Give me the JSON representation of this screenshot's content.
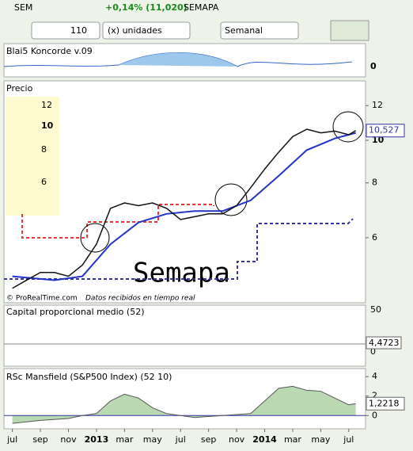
{
  "toolbar": {
    "ticker": "SEM",
    "change": "+0,14% (11,020)",
    "name": "SEMAPA",
    "quantity": "110",
    "unit": "(x) unidades",
    "period": "Semanal"
  },
  "koncorde": {
    "title": "Blai5 Koncorde v.09",
    "ytick": "0"
  },
  "price": {
    "title": "Precio",
    "log": true,
    "ylim": [
      4.3,
      13
    ],
    "yticks": [
      12,
      {
        "value": 10,
        "label": "10"
      },
      8,
      6
    ],
    "last": {
      "value": 10.527,
      "label": "10,527"
    },
    "inset_ticks": [
      "12",
      "10",
      "8",
      "6"
    ],
    "watermark": "Semapa",
    "credit": "© ProRealTime.com",
    "credit_note": "Datos recibidos en tiempo real",
    "x": [
      0,
      1,
      2,
      3,
      4,
      5,
      6,
      7,
      8,
      9,
      10,
      11,
      12,
      13,
      14,
      15,
      16,
      17,
      18,
      19,
      20,
      21,
      22,
      23,
      24,
      24.5
    ],
    "close": [
      4.6,
      4.8,
      5.0,
      5.0,
      4.9,
      5.2,
      5.8,
      7.0,
      7.2,
      7.1,
      7.2,
      7.0,
      6.6,
      6.7,
      6.8,
      6.8,
      7.1,
      7.8,
      8.6,
      9.4,
      10.2,
      10.6,
      10.4,
      10.5,
      10.3,
      10.527
    ],
    "ma_x": [
      0,
      3,
      5,
      7,
      9,
      11,
      13,
      15,
      17,
      19,
      21,
      23,
      24.5
    ],
    "ma": [
      4.9,
      4.8,
      4.9,
      5.8,
      6.5,
      6.8,
      6.9,
      6.9,
      7.3,
      8.3,
      9.5,
      10.1,
      10.4
    ]
  },
  "capital": {
    "title": "Capital proporcional medio (52)",
    "yticks": [
      "50",
      "0"
    ],
    "last": "4,4723"
  },
  "mansfield": {
    "title": "RSc Mansfield (S&P500 Index) (52 10)",
    "ylim": [
      -1.2,
      4.5
    ],
    "yticks": [
      4,
      2,
      0
    ],
    "last": {
      "value": 1.2218,
      "label": "1,2218"
    },
    "x": [
      0,
      2,
      4,
      5,
      6,
      7,
      8,
      9,
      10,
      11,
      12,
      13,
      15,
      17,
      18,
      19,
      20,
      21,
      22,
      23,
      24,
      24.5
    ],
    "values": [
      -0.8,
      -0.5,
      -0.3,
      0,
      0.2,
      1.5,
      2.2,
      1.8,
      0.8,
      0.2,
      0,
      -0.2,
      0,
      0.2,
      1.5,
      2.8,
      3.0,
      2.6,
      2.5,
      1.8,
      1.1,
      1.2218
    ]
  },
  "xaxis": {
    "xlim": [
      -0.6,
      24.8
    ],
    "ticks": [
      {
        "value": 0,
        "label": "jul"
      },
      {
        "value": 2,
        "label": "sep"
      },
      {
        "value": 4,
        "label": "nov"
      },
      {
        "value": 6,
        "label": "2013"
      },
      {
        "value": 8,
        "label": "mar"
      },
      {
        "value": 10,
        "label": "may"
      },
      {
        "value": 12,
        "label": "jul"
      },
      {
        "value": 14,
        "label": "sep"
      },
      {
        "value": 16,
        "label": "nov"
      },
      {
        "value": 18,
        "label": "2014"
      },
      {
        "value": 20,
        "label": "mar"
      },
      {
        "value": 22,
        "label": "may"
      },
      {
        "value": 24,
        "label": "jul"
      }
    ]
  }
}
